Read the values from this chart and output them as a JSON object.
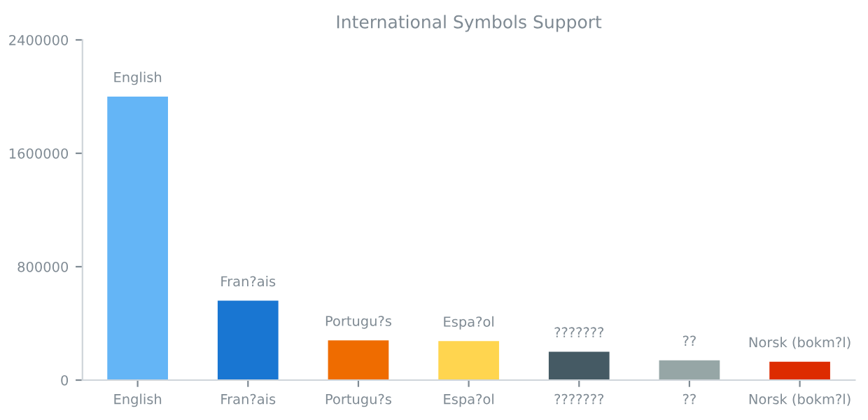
{
  "chart_data": {
    "type": "bar",
    "title": "International Symbols Support",
    "categories": [
      "English",
      "Fran?ais",
      "Portugu?s",
      "Espa?ol",
      "???????",
      "??",
      "Norsk (bokm?l)"
    ],
    "values": [
      2000000,
      560000,
      280000,
      275000,
      200000,
      140000,
      130000
    ],
    "colors": [
      "#64b5f6",
      "#1976d2",
      "#ef6c00",
      "#ffd54f",
      "#455a64",
      "#96a6a6",
      "#dd2c00"
    ],
    "value_labels": [
      "English",
      "Fran?ais",
      "Portugu?s",
      "Espa?ol",
      "???????",
      "??",
      "Norsk (bokm?l)"
    ],
    "ylim": [
      0,
      2400000
    ],
    "yticks": [
      0,
      800000,
      1600000,
      2400000
    ],
    "grid": false,
    "legend": false
  }
}
